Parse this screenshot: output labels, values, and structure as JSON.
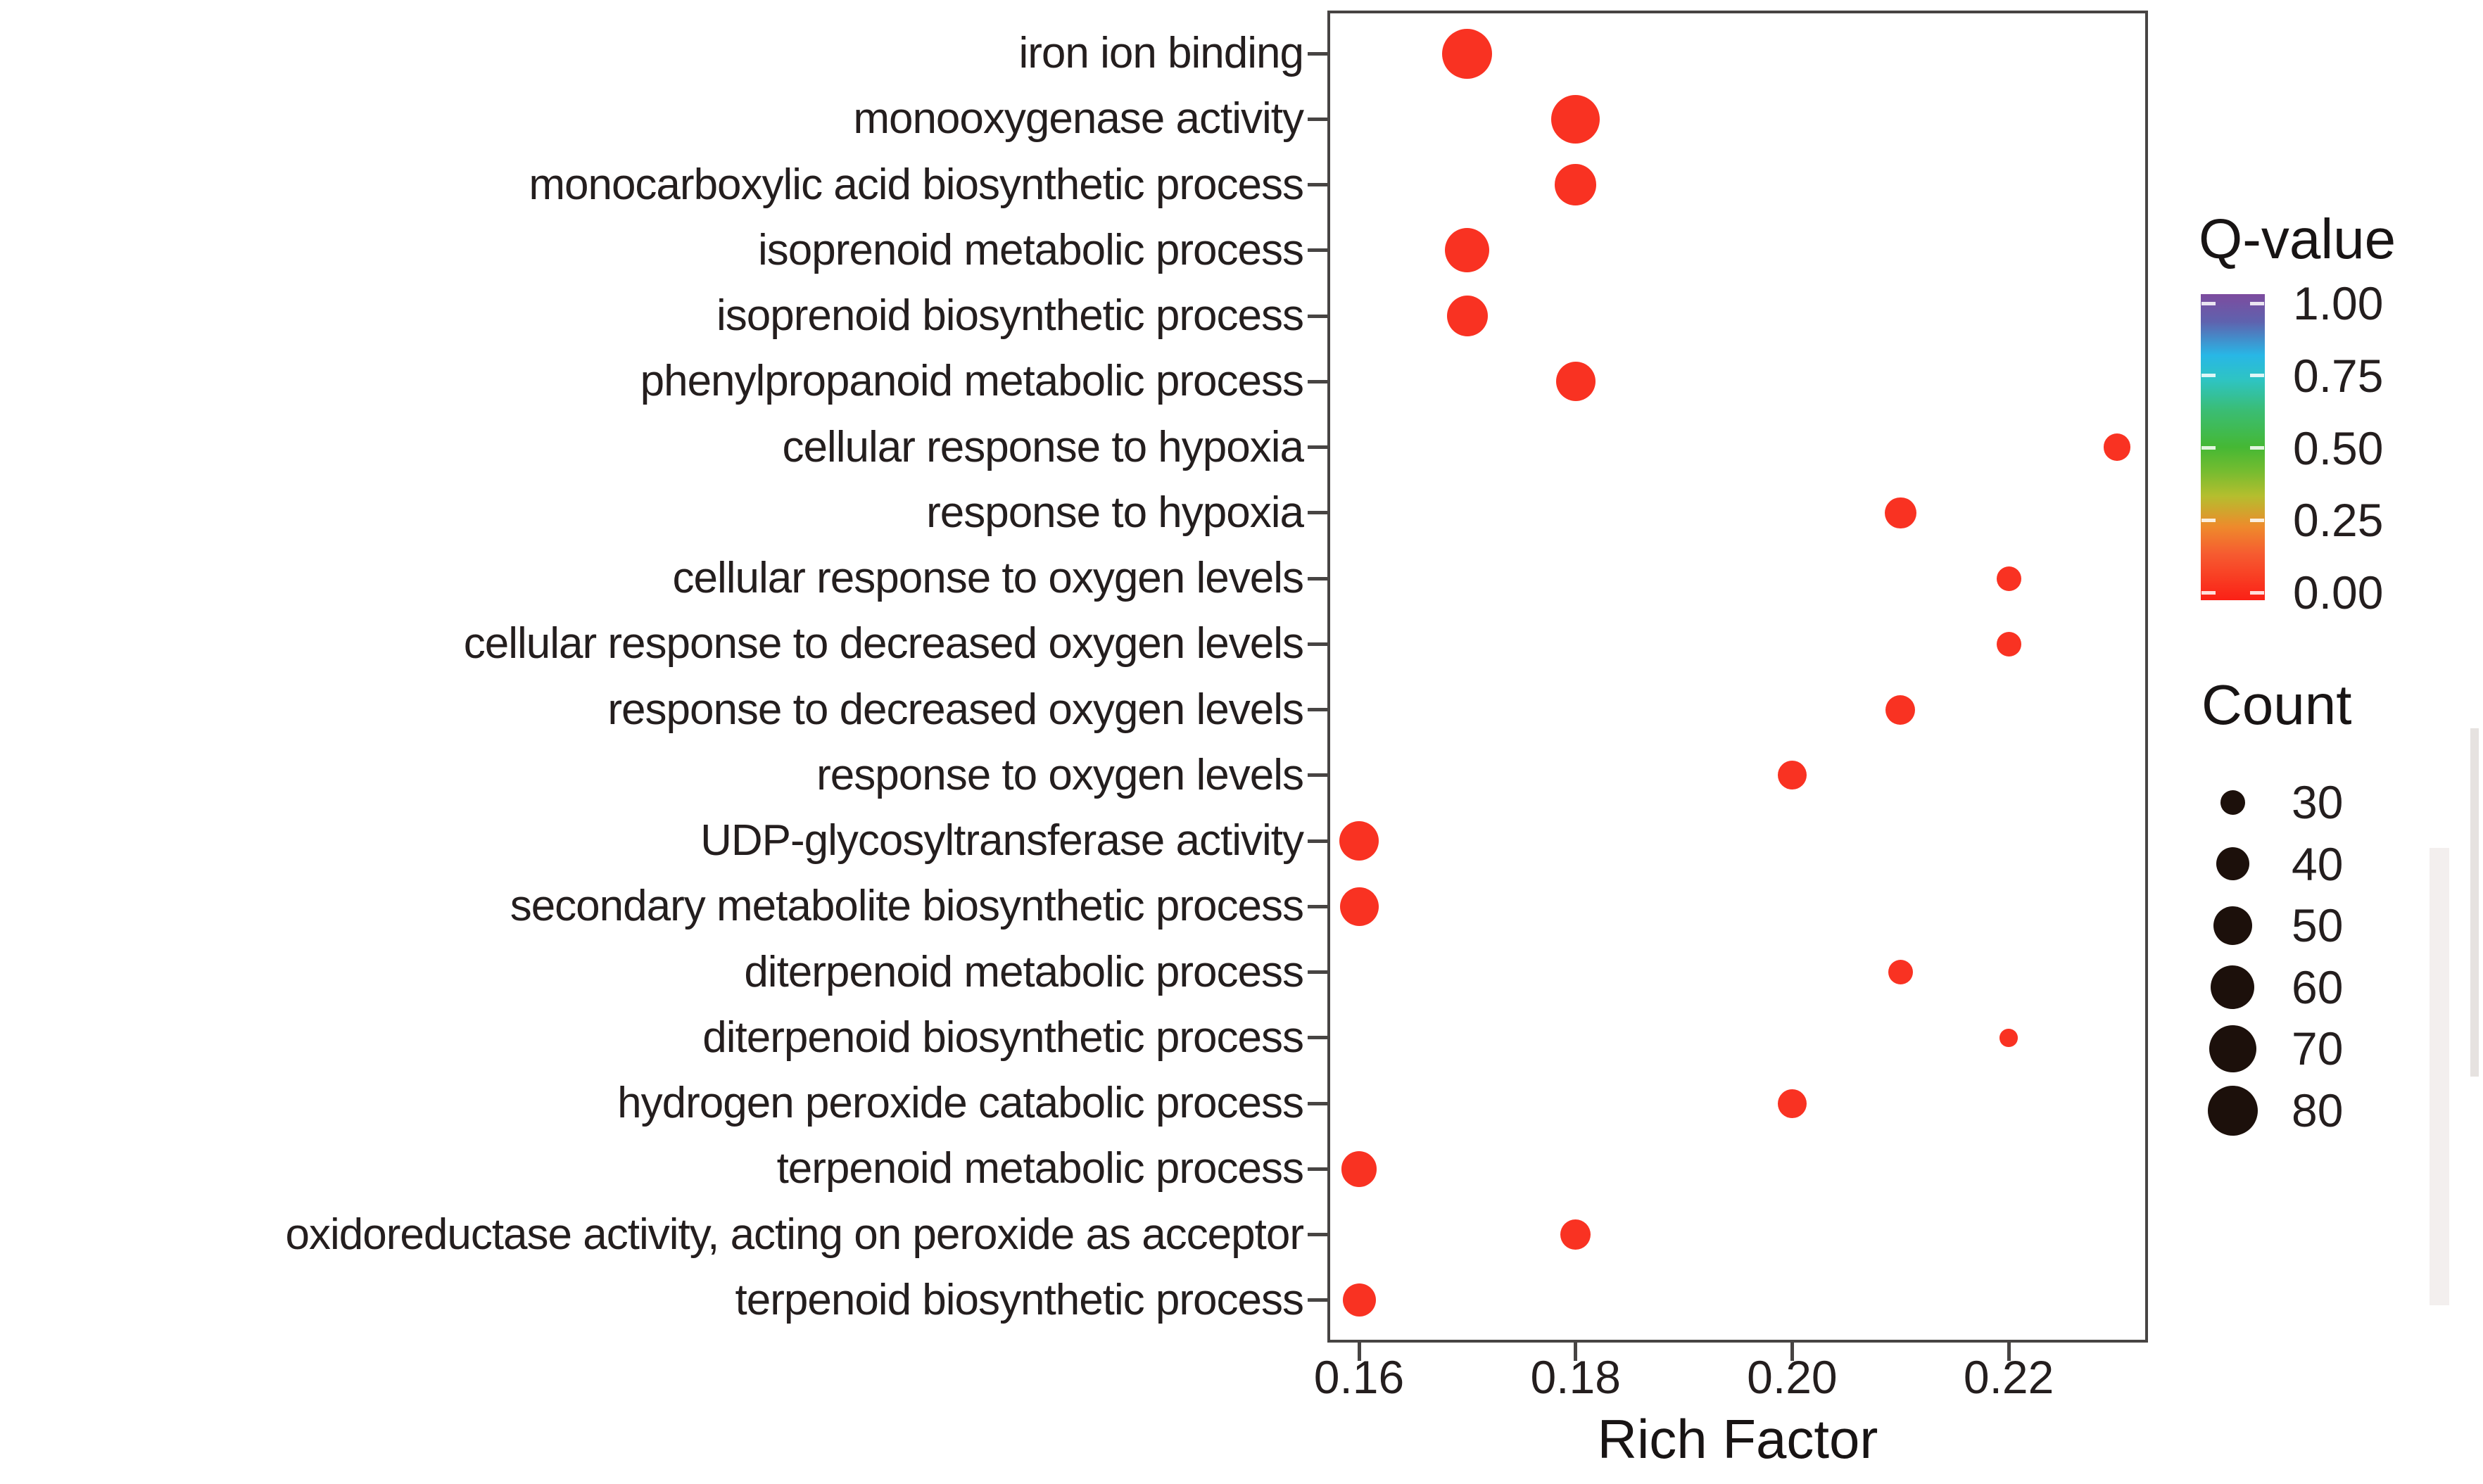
{
  "chart_data": {
    "type": "scatter",
    "subtype": "bubble-enrichment-dotplot",
    "title": "",
    "xlabel": "Rich Factor",
    "ylabel": "",
    "x_ticks": [
      0.16,
      0.18,
      0.2,
      0.22
    ],
    "x_tick_labels": [
      "0.16",
      "0.18",
      "0.20",
      "0.22"
    ],
    "x_range": [
      0.157,
      0.2335
    ],
    "grid": false,
    "legend_position": "right",
    "categories": [
      "iron ion binding",
      "monooxygenase activity",
      "monocarboxylic acid biosynthetic process",
      "isoprenoid metabolic process",
      "isoprenoid biosynthetic process",
      "phenylpropanoid metabolic process",
      "cellular response to hypoxia",
      "response to hypoxia",
      "cellular response to oxygen levels",
      "cellular response to decreased oxygen levels",
      "response to decreased oxygen levels",
      "response to oxygen levels",
      "UDP-glycosyltransferase activity",
      "secondary metabolite biosynthetic process",
      "diterpenoid metabolic process",
      "diterpenoid biosynthetic process",
      "hydrogen peroxide catabolic process",
      "terpenoid metabolic process",
      "oxidoreductase activity, acting on peroxide as acceptor",
      "terpenoid biosynthetic process"
    ],
    "points": [
      {
        "term": "iron ion binding",
        "rich_factor": 0.17,
        "count": 80,
        "q_value": 0
      },
      {
        "term": "monooxygenase activity",
        "rich_factor": 0.18,
        "count": 75,
        "q_value": 0
      },
      {
        "term": "monocarboxylic acid biosynthetic process",
        "rich_factor": 0.18,
        "count": 55,
        "q_value": 0
      },
      {
        "term": "isoprenoid metabolic process",
        "rich_factor": 0.17,
        "count": 62,
        "q_value": 0
      },
      {
        "term": "isoprenoid biosynthetic process",
        "rich_factor": 0.17,
        "count": 55,
        "q_value": 0
      },
      {
        "term": "phenylpropanoid metabolic process",
        "rich_factor": 0.18,
        "count": 52,
        "q_value": 0
      },
      {
        "term": "cellular response to hypoxia",
        "rich_factor": 0.23,
        "count": 33,
        "q_value": 0
      },
      {
        "term": "response to hypoxia",
        "rich_factor": 0.21,
        "count": 38,
        "q_value": 0
      },
      {
        "term": "cellular response to oxygen levels",
        "rich_factor": 0.22,
        "count": 30,
        "q_value": 0
      },
      {
        "term": "cellular response to decreased oxygen levels",
        "rich_factor": 0.22,
        "count": 30,
        "q_value": 0
      },
      {
        "term": "response to decreased oxygen levels",
        "rich_factor": 0.21,
        "count": 36,
        "q_value": 0
      },
      {
        "term": "response to oxygen levels",
        "rich_factor": 0.2,
        "count": 35,
        "q_value": 0
      },
      {
        "term": "UDP-glycosyltransferase activity",
        "rich_factor": 0.16,
        "count": 52,
        "q_value": 0
      },
      {
        "term": "secondary metabolite biosynthetic process",
        "rich_factor": 0.16,
        "count": 50,
        "q_value": 0
      },
      {
        "term": "diterpenoid metabolic process",
        "rich_factor": 0.21,
        "count": 30,
        "q_value": 0
      },
      {
        "term": "diterpenoid biosynthetic process",
        "rich_factor": 0.22,
        "count": 22,
        "q_value": 0
      },
      {
        "term": "hydrogen peroxide catabolic process",
        "rich_factor": 0.2,
        "count": 35,
        "q_value": 0
      },
      {
        "term": "terpenoid metabolic process",
        "rich_factor": 0.16,
        "count": 44,
        "q_value": 0
      },
      {
        "term": "oxidoreductase activity, acting on peroxide as acceptor",
        "rich_factor": 0.18,
        "count": 37,
        "q_value": 0
      },
      {
        "term": "terpenoid biosynthetic process",
        "rich_factor": 0.16,
        "count": 40,
        "q_value": 0
      }
    ],
    "legend_qvalue": {
      "title": "Q-value",
      "tick_labels": [
        "1.00",
        "0.75",
        "0.50",
        "0.25",
        "0.00"
      ],
      "gradient_stops": [
        {
          "pos": 0,
          "color": "#7d4b9e"
        },
        {
          "pos": 9,
          "color": "#5f62ae"
        },
        {
          "pos": 20,
          "color": "#28b7e6"
        },
        {
          "pos": 28,
          "color": "#2ec4c3"
        },
        {
          "pos": 38,
          "color": "#3abd74"
        },
        {
          "pos": 50,
          "color": "#45b834"
        },
        {
          "pos": 58,
          "color": "#76bc30"
        },
        {
          "pos": 66,
          "color": "#b5be2e"
        },
        {
          "pos": 76,
          "color": "#ee8a2c"
        },
        {
          "pos": 85,
          "color": "#f65b30"
        },
        {
          "pos": 100,
          "color": "#fb2016"
        }
      ]
    },
    "legend_count": {
      "title": "Count",
      "items": [
        30,
        40,
        50,
        60,
        70,
        80
      ]
    },
    "colors": {
      "dot": "#f93222",
      "legend_dot": "#1c100b",
      "axis_text": "#241e1e",
      "frame": "#474443"
    }
  }
}
